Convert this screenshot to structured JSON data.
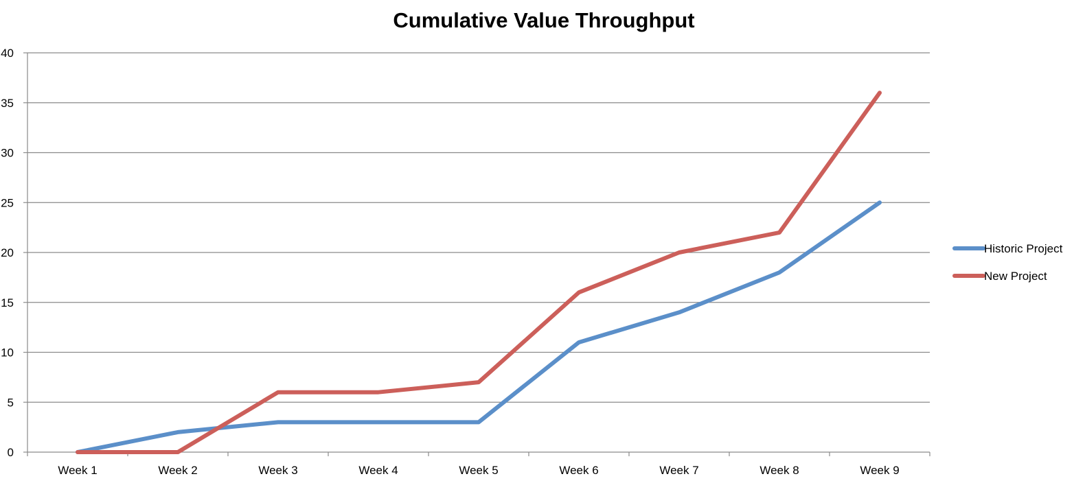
{
  "chart_data": {
    "type": "line",
    "title": "Cumulative Value Throughput",
    "xlabel": "",
    "ylabel": "",
    "categories": [
      "Week 1",
      "Week 2",
      "Week 3",
      "Week 4",
      "Week 5",
      "Week 6",
      "Week 7",
      "Week 8",
      "Week 9"
    ],
    "ylim": [
      0,
      40
    ],
    "yticks": [
      0,
      5,
      10,
      15,
      20,
      25,
      30,
      35,
      40
    ],
    "grid": true,
    "legend_position": "right",
    "series": [
      {
        "name": "Historic Project",
        "color": "#5b8fc9",
        "values": [
          0,
          2,
          3,
          3,
          3,
          11,
          14,
          18,
          25
        ]
      },
      {
        "name": "New Project",
        "color": "#cc5f5a",
        "values": [
          0,
          0,
          6,
          6,
          7,
          16,
          20,
          22,
          36
        ]
      }
    ]
  }
}
